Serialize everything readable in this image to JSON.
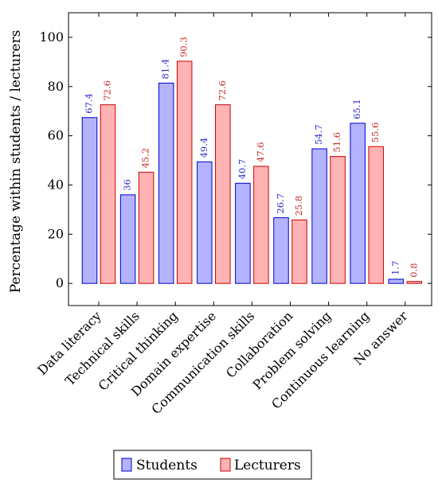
{
  "chart_data": {
    "type": "bar",
    "categories": [
      "Data literacy",
      "Technical skills",
      "Critical thinking",
      "Domain expertise",
      "Communication skills",
      "Collaboration",
      "Problem solving",
      "Continuous learning",
      "No answer"
    ],
    "series": [
      {
        "name": "Students",
        "values": [
          67.4,
          36,
          81.4,
          49.4,
          40.7,
          26.7,
          54.7,
          65.1,
          1.7
        ],
        "value_labels": [
          "67.4",
          "36",
          "81.4",
          "49.4",
          "40.7",
          "26.7",
          "54.7",
          "65.1",
          "1.7"
        ],
        "fill": "#b3b3ff",
        "stroke": "#0000cc",
        "label_color": "#2a2acc"
      },
      {
        "name": "Lecturers",
        "values": [
          72.6,
          45.2,
          90.3,
          72.6,
          47.6,
          25.8,
          51.6,
          55.6,
          0.8
        ],
        "value_labels": [
          "72.6",
          "45.2",
          "90.3",
          "72.6",
          "47.6",
          "25.8",
          "51.6",
          "55.6",
          "0.8"
        ],
        "fill": "#ffb3b3",
        "stroke": "#cc0000",
        "label_color": "#cc2a2a"
      }
    ],
    "ylabel": "Percentage within students / lecturers",
    "xlabel": "",
    "ylim": [
      -9,
      110
    ],
    "yticks": [
      0,
      20,
      40,
      60,
      80,
      100
    ],
    "ytick_labels": [
      "0",
      "20",
      "40",
      "60",
      "80",
      "100"
    ],
    "grid": false,
    "legend_placement": "bottom-center"
  }
}
